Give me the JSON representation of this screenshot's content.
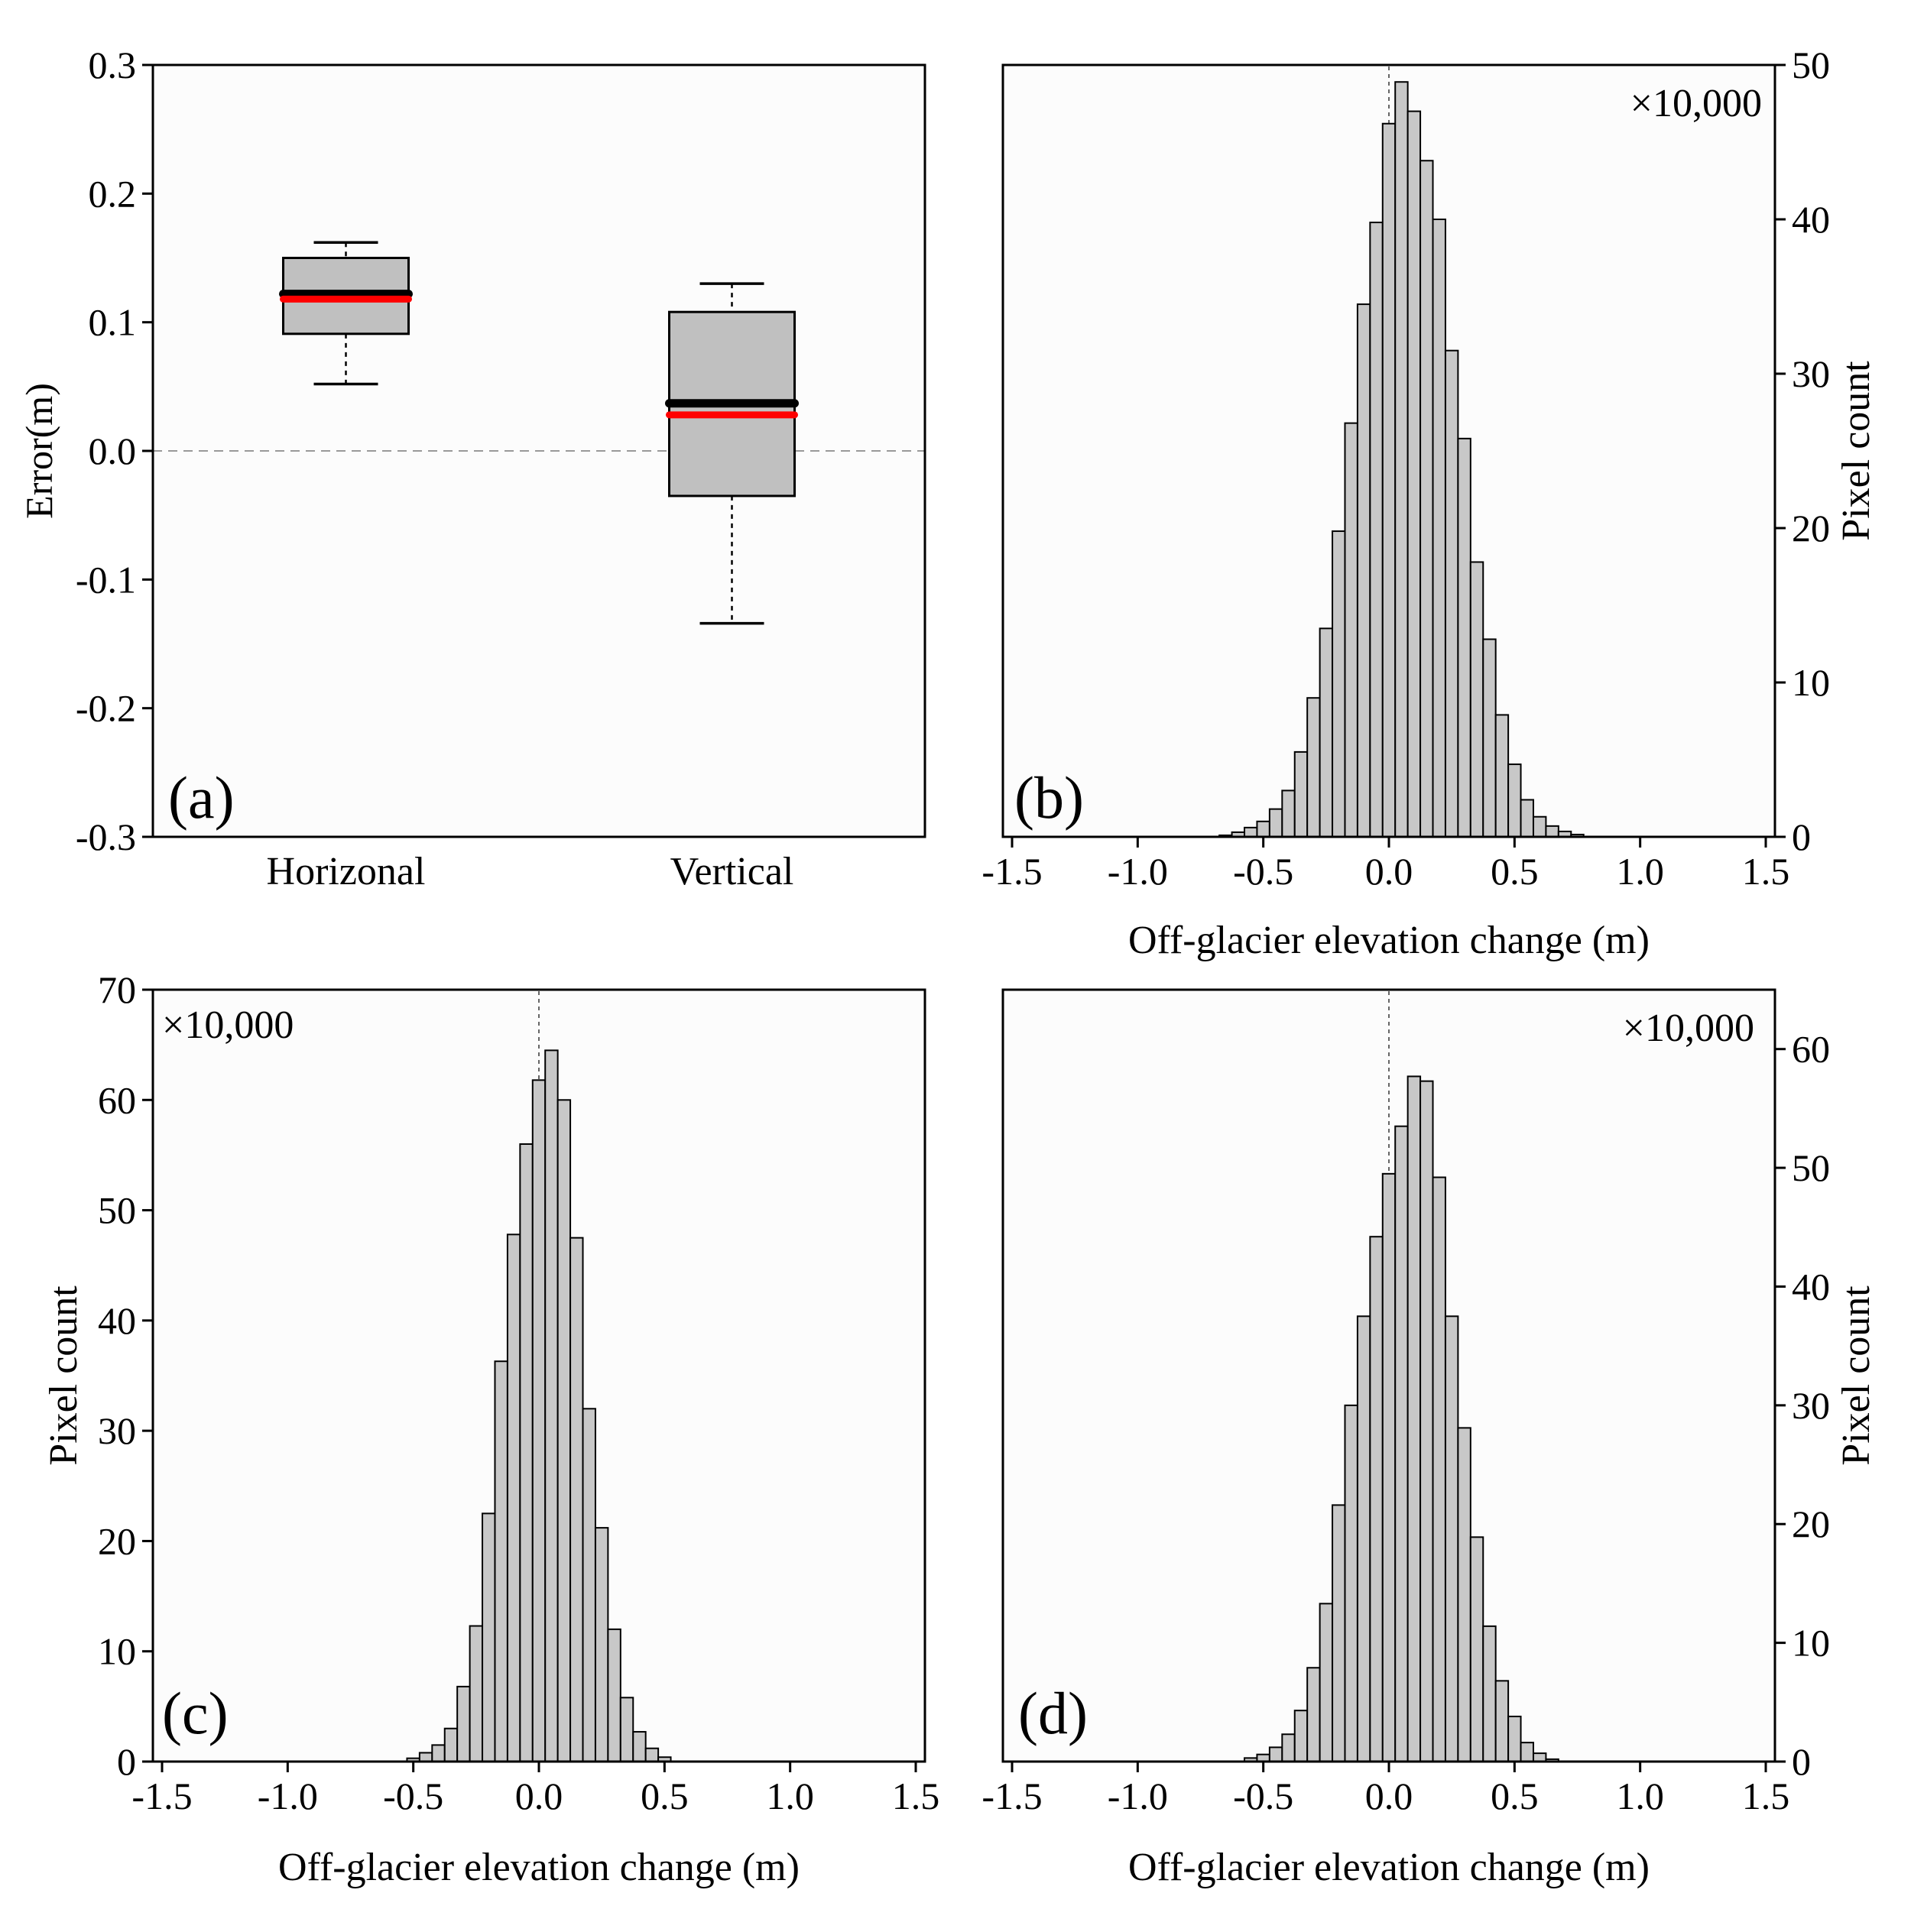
{
  "chart_data": [
    {
      "id": "a",
      "type": "box",
      "panel_label": "(a)",
      "ylabel": "Error(m)",
      "ylim": [
        -0.3,
        0.3
      ],
      "yticks": [
        0.3,
        0.2,
        0.1,
        0.0,
        -0.1,
        -0.2,
        -0.3
      ],
      "ytick_labels": [
        "0.3",
        "0.2",
        "0.1",
        "0.0",
        "-0.1",
        "-0.2",
        "-0.3"
      ],
      "categories": [
        "Horizonal",
        "Vertical"
      ],
      "reference_line": 0.0,
      "series": [
        {
          "name": "Horizonal",
          "whisker_low": 0.052,
          "q1": 0.091,
          "median": 0.122,
          "mean": 0.118,
          "q3": 0.15,
          "whisker_high": 0.162
        },
        {
          "name": "Vertical",
          "whisker_low": -0.134,
          "q1": -0.035,
          "median": 0.037,
          "mean": 0.028,
          "q3": 0.108,
          "whisker_high": 0.13
        }
      ],
      "median_color": "#000000",
      "mean_color": "#ff0000",
      "box_color": "#c0c0c0"
    },
    {
      "id": "b",
      "type": "bar",
      "panel_label": "(b)",
      "multiplier": "×10,000",
      "xlabel": "Off-glacier elevation change (m)",
      "ylabel": "Pixel count",
      "yaxis_side": "right",
      "xlim": [
        -1.5,
        1.5
      ],
      "xticks": [
        -1.5,
        -1.0,
        -0.5,
        0.0,
        0.5,
        1.0,
        1.5
      ],
      "xtick_labels": [
        "-1.5",
        "-1.0",
        "-0.5",
        "0.0",
        "0.5",
        "1.0",
        "1.5"
      ],
      "ylim": [
        0,
        50
      ],
      "yticks": [
        0,
        10,
        20,
        30,
        40,
        50
      ],
      "ytick_labels": [
        "0",
        "10",
        "20",
        "30",
        "40",
        "50"
      ],
      "bin_width": 0.05,
      "x": [
        -0.65,
        -0.6,
        -0.55,
        -0.5,
        -0.45,
        -0.4,
        -0.35,
        -0.3,
        -0.25,
        -0.2,
        -0.15,
        -0.1,
        -0.05,
        0.0,
        0.05,
        0.1,
        0.15,
        0.2,
        0.25,
        0.3,
        0.35,
        0.4,
        0.45,
        0.5,
        0.55,
        0.6,
        0.65,
        0.7,
        0.75
      ],
      "values": [
        0.1,
        0.3,
        0.6,
        1.0,
        1.8,
        3.0,
        5.5,
        9.0,
        13.5,
        19.8,
        26.8,
        34.5,
        39.8,
        46.2,
        48.9,
        47.0,
        43.8,
        40.0,
        31.5,
        25.8,
        17.8,
        12.8,
        7.9,
        4.7,
        2.4,
        1.3,
        0.7,
        0.35,
        0.15
      ]
    },
    {
      "id": "c",
      "type": "bar",
      "panel_label": "(c)",
      "multiplier": "×10,000",
      "xlabel": "Off-glacier elevation change (m)",
      "ylabel": "Pixel count",
      "yaxis_side": "left",
      "xlim": [
        -1.5,
        1.5
      ],
      "xticks": [
        -1.5,
        -1.0,
        -0.5,
        0.0,
        0.5,
        1.0,
        1.5
      ],
      "xtick_labels": [
        "-1.5",
        "-1.0",
        "-0.5",
        "0.0",
        "0.5",
        "1.0",
        "1.5"
      ],
      "ylim": [
        0,
        70
      ],
      "yticks": [
        0,
        10,
        20,
        30,
        40,
        50,
        60,
        70
      ],
      "ytick_labels": [
        "0",
        "10",
        "20",
        "30",
        "40",
        "50",
        "60",
        "70"
      ],
      "bin_width": 0.05,
      "x": [
        -0.5,
        -0.45,
        -0.4,
        -0.35,
        -0.3,
        -0.25,
        -0.2,
        -0.15,
        -0.1,
        -0.05,
        0.0,
        0.05,
        0.1,
        0.15,
        0.2,
        0.25,
        0.3,
        0.35,
        0.4,
        0.45,
        0.5
      ],
      "values": [
        0.3,
        0.8,
        1.5,
        3.0,
        6.8,
        12.3,
        22.5,
        36.3,
        47.8,
        56.0,
        61.8,
        64.5,
        60.0,
        47.5,
        32.0,
        21.2,
        12.0,
        5.8,
        2.7,
        1.2,
        0.4
      ]
    },
    {
      "id": "d",
      "type": "bar",
      "panel_label": "(d)",
      "multiplier": "×10,000",
      "xlabel": "Off-glacier elevation change (m)",
      "ylabel": "Pixel count",
      "yaxis_side": "right",
      "xlim": [
        -1.5,
        1.5
      ],
      "xticks": [
        -1.5,
        -1.0,
        -0.5,
        0.0,
        0.5,
        1.0,
        1.5
      ],
      "xtick_labels": [
        "-1.5",
        "-1.0",
        "-0.5",
        "0.0",
        "0.5",
        "1.0",
        "1.5"
      ],
      "ylim": [
        0,
        65
      ],
      "yticks": [
        0,
        10,
        20,
        30,
        40,
        50,
        60
      ],
      "ytick_labels": [
        "0",
        "10",
        "20",
        "30",
        "40",
        "50",
        "60"
      ],
      "bin_width": 0.05,
      "x": [
        -0.55,
        -0.5,
        -0.45,
        -0.4,
        -0.35,
        -0.3,
        -0.25,
        -0.2,
        -0.15,
        -0.1,
        -0.05,
        0.0,
        0.05,
        0.1,
        0.15,
        0.2,
        0.25,
        0.3,
        0.35,
        0.4,
        0.45,
        0.5,
        0.55,
        0.6,
        0.65
      ],
      "values": [
        0.3,
        0.6,
        1.2,
        2.3,
        4.3,
        7.9,
        13.3,
        21.6,
        30.0,
        37.5,
        44.2,
        49.5,
        53.5,
        57.7,
        57.3,
        49.2,
        37.5,
        28.1,
        18.9,
        11.4,
        6.8,
        3.8,
        1.6,
        0.7,
        0.2
      ]
    }
  ]
}
